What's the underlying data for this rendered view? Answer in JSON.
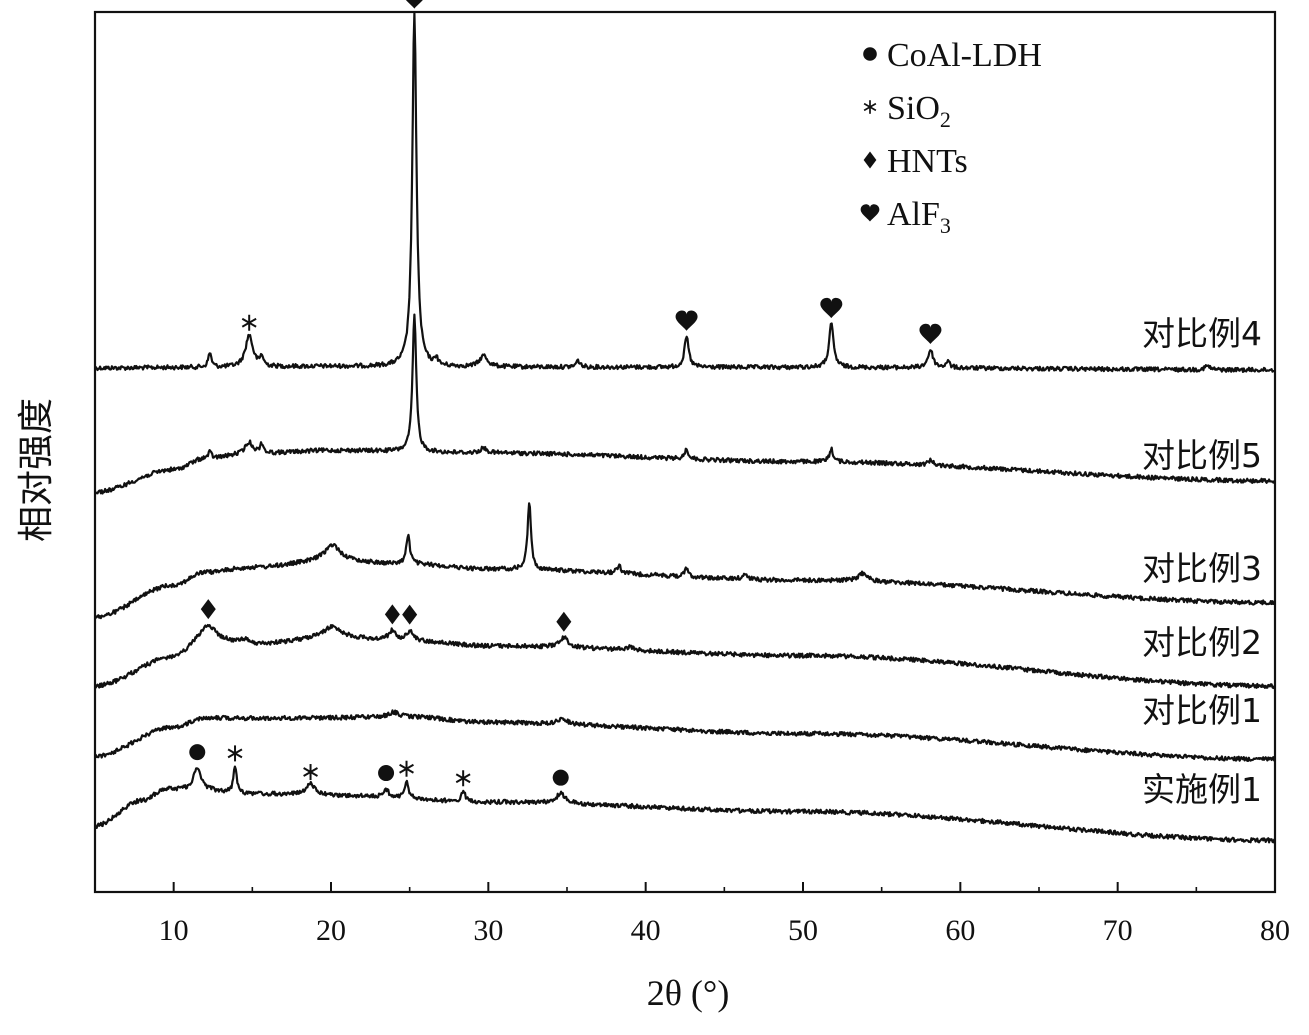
{
  "chart_data": {
    "type": "line",
    "title": "",
    "xlabel": "2θ (°)",
    "ylabel": "相对强度",
    "xlim": [
      5,
      80
    ],
    "xticks": [
      10,
      20,
      30,
      40,
      50,
      60,
      70,
      80
    ],
    "yticks_shown": false,
    "grid": false,
    "legend": {
      "placement": "top-right",
      "entries": [
        {
          "marker": "circle",
          "label": "CoAl-LDH",
          "sub": ""
        },
        {
          "marker": "asterisk",
          "label": "SiO",
          "sub": "2"
        },
        {
          "marker": "diamond",
          "label": "HNTs",
          "sub": ""
        },
        {
          "marker": "heart",
          "label": "AlF",
          "sub": "3"
        }
      ]
    },
    "series": [
      {
        "name": "对比例4",
        "baseline": [
          [
            5,
            0.0
          ],
          [
            12,
            0.02
          ],
          [
            20,
            0.05
          ],
          [
            30,
            0.03
          ],
          [
            50,
            0.02
          ],
          [
            80,
            -0.06
          ]
        ],
        "peaks": [
          [
            12.3,
            0.45,
            0.12
          ],
          [
            14.8,
            1.0,
            0.28
          ],
          [
            15.6,
            0.3,
            0.12
          ],
          [
            25.3,
            11.0,
            0.16
          ],
          [
            26.7,
            0.25,
            0.1
          ],
          [
            29.7,
            0.35,
            0.3
          ],
          [
            35.7,
            0.2,
            0.15
          ],
          [
            42.6,
            0.95,
            0.16
          ],
          [
            51.8,
            1.35,
            0.17
          ],
          [
            58.1,
            0.55,
            0.2
          ],
          [
            59.2,
            0.2,
            0.15
          ],
          [
            75.7,
            0.12,
            0.2
          ]
        ]
      },
      {
        "name": "对比例5",
        "baseline": [
          [
            5,
            0.0
          ],
          [
            10,
            0.7
          ],
          [
            12,
            1.05
          ],
          [
            15,
            1.2
          ],
          [
            20,
            1.3
          ],
          [
            30,
            1.22
          ],
          [
            50,
            0.95
          ],
          [
            80,
            0.35
          ]
        ],
        "peaks": [
          [
            12.3,
            0.2,
            0.12
          ],
          [
            14.8,
            0.35,
            0.3
          ],
          [
            15.6,
            0.3,
            0.12
          ],
          [
            25.3,
            4.3,
            0.14
          ],
          [
            29.7,
            0.15,
            0.25
          ],
          [
            42.6,
            0.3,
            0.15
          ],
          [
            51.8,
            0.4,
            0.15
          ],
          [
            58.1,
            0.15,
            0.2
          ]
        ]
      },
      {
        "name": "对比例3",
        "baseline": [
          [
            5,
            0.0
          ],
          [
            10,
            1.0
          ],
          [
            12,
            1.4
          ],
          [
            15,
            1.55
          ],
          [
            20,
            1.75
          ],
          [
            25,
            1.65
          ],
          [
            30,
            1.5
          ],
          [
            50,
            1.15
          ],
          [
            80,
            0.45
          ]
        ],
        "peaks": [
          [
            20.1,
            0.5,
            0.6
          ],
          [
            24.9,
            0.9,
            0.14
          ],
          [
            32.6,
            2.1,
            0.13
          ],
          [
            38.3,
            0.25,
            0.15
          ],
          [
            42.6,
            0.25,
            0.15
          ],
          [
            46.3,
            0.15,
            0.2
          ],
          [
            53.8,
            0.25,
            0.35
          ]
        ]
      },
      {
        "name": "对比例2",
        "baseline": [
          [
            5,
            0.0
          ],
          [
            10,
            0.9
          ],
          [
            12,
            1.5
          ],
          [
            15,
            1.3
          ],
          [
            20,
            1.5
          ],
          [
            25,
            1.4
          ],
          [
            30,
            1.25
          ],
          [
            50,
            0.95
          ],
          [
            80,
            0.0
          ]
        ],
        "peaks": [
          [
            12.2,
            0.4,
            0.5
          ],
          [
            14.5,
            0.15,
            0.3
          ],
          [
            20.1,
            0.35,
            0.7
          ],
          [
            23.9,
            0.3,
            0.3
          ],
          [
            25.0,
            0.3,
            0.25
          ],
          [
            34.8,
            0.3,
            0.35
          ],
          [
            39.0,
            0.1,
            0.3
          ]
        ]
      },
      {
        "name": "对比例1",
        "baseline": [
          [
            5,
            0.0
          ],
          [
            10,
            0.9
          ],
          [
            12,
            1.2
          ],
          [
            15,
            1.18
          ],
          [
            20,
            1.2
          ],
          [
            25,
            1.22
          ],
          [
            30,
            1.05
          ],
          [
            50,
            0.7
          ],
          [
            80,
            -0.1
          ]
        ],
        "peaks": [
          [
            24.0,
            0.15,
            0.4
          ],
          [
            34.7,
            0.2,
            0.3
          ]
        ]
      },
      {
        "name": "实施例1",
        "baseline": [
          [
            5,
            0.0
          ],
          [
            8,
            0.8
          ],
          [
            9.5,
            1.15
          ],
          [
            12,
            1.1
          ],
          [
            15,
            1.0
          ],
          [
            20,
            0.95
          ],
          [
            30,
            0.75
          ],
          [
            50,
            0.45
          ],
          [
            80,
            -0.45
          ]
        ],
        "peaks": [
          [
            11.5,
            0.7,
            0.3
          ],
          [
            13.9,
            0.85,
            0.12
          ],
          [
            18.7,
            0.35,
            0.4
          ],
          [
            23.5,
            0.25,
            0.2
          ],
          [
            24.8,
            0.55,
            0.15
          ],
          [
            28.4,
            0.35,
            0.15
          ],
          [
            34.6,
            0.3,
            0.35
          ]
        ]
      }
    ],
    "annotations": [
      {
        "series": "对比例4",
        "marker": "heart",
        "x": 25.3
      },
      {
        "series": "对比例4",
        "marker": "asterisk",
        "x": 14.8
      },
      {
        "series": "对比例4",
        "marker": "heart",
        "x": 42.6
      },
      {
        "series": "对比例4",
        "marker": "heart",
        "x": 51.8
      },
      {
        "series": "对比例4",
        "marker": "heart",
        "x": 58.1
      },
      {
        "series": "对比例2",
        "marker": "diamond",
        "x": 12.2
      },
      {
        "series": "对比例2",
        "marker": "diamond",
        "x": 23.9
      },
      {
        "series": "对比例2",
        "marker": "diamond",
        "x": 25.0
      },
      {
        "series": "对比例2",
        "marker": "diamond",
        "x": 34.8
      },
      {
        "series": "实施例1",
        "marker": "circle",
        "x": 11.5
      },
      {
        "series": "实施例1",
        "marker": "asterisk",
        "x": 13.9
      },
      {
        "series": "实施例1",
        "marker": "asterisk",
        "x": 18.7
      },
      {
        "series": "实施例1",
        "marker": "circle",
        "x": 23.5
      },
      {
        "series": "实施例1",
        "marker": "asterisk",
        "x": 24.8
      },
      {
        "series": "实施例1",
        "marker": "asterisk",
        "x": 28.4
      },
      {
        "series": "实施例1",
        "marker": "circle",
        "x": 34.6
      }
    ]
  }
}
